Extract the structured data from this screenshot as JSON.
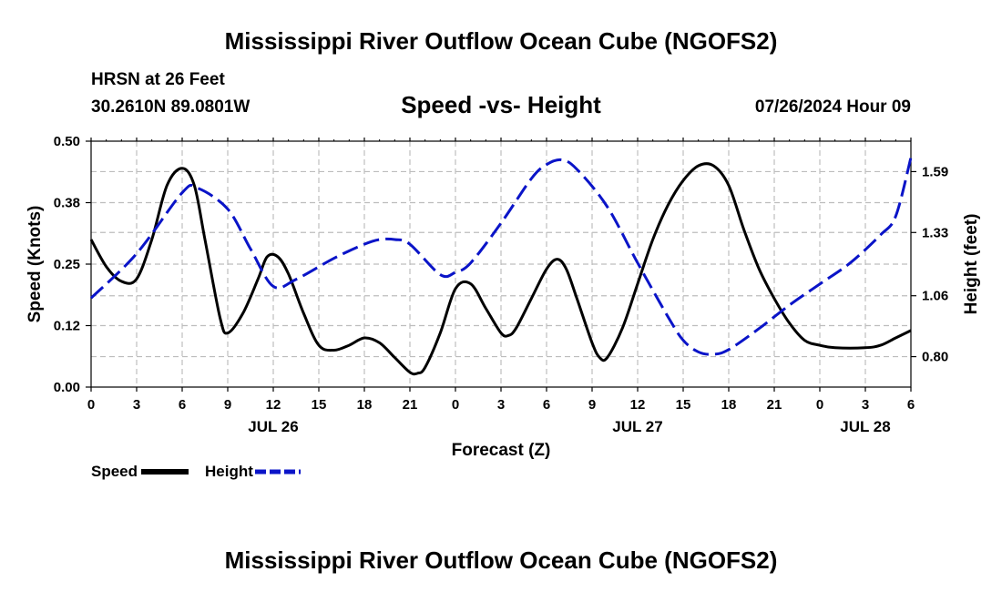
{
  "header": {
    "title": "Mississippi River Outflow Ocean Cube (NGOFS2)",
    "station": "HRSN at 26 Feet",
    "coords": "30.2610N  89.0801W",
    "subtitle": "Speed -vs- Height",
    "datetime": "07/26/2024 Hour 09"
  },
  "footer": {
    "title": "Mississippi River Outflow Ocean Cube (NGOFS2)"
  },
  "legend": {
    "speed_label": "Speed",
    "height_label": "Height",
    "speed_color": "#000000",
    "height_color": "#0a14c8"
  },
  "chart_data": {
    "type": "line",
    "title": "Speed -vs- Height",
    "xlabel": "Forecast (Z)",
    "ylabel": "Speed (Knots)",
    "y2label": "Height (feet)",
    "xlim": [
      0,
      54
    ],
    "ylim": [
      0,
      0.5
    ],
    "y2lim": [
      0.67,
      1.72
    ],
    "x_ticks": [
      0,
      3,
      6,
      9,
      12,
      15,
      18,
      21,
      24,
      27,
      30,
      33,
      36,
      39,
      42,
      45,
      48,
      51,
      54
    ],
    "x_tick_labels": [
      "0",
      "3",
      "6",
      "9",
      "12",
      "15",
      "18",
      "21",
      "0",
      "3",
      "6",
      "9",
      "12",
      "15",
      "18",
      "21",
      "0",
      "3",
      "6"
    ],
    "y_ticks": [
      0,
      0.125,
      0.25,
      0.375,
      0.5
    ],
    "y_tick_labels": [
      "0.00",
      "0.12",
      "0.25",
      "0.38",
      "0.50"
    ],
    "y2_ticks": [
      0.8,
      1.06,
      1.33,
      1.59
    ],
    "y2_tick_labels": [
      "0.80",
      "1.06",
      "1.33",
      "1.59"
    ],
    "date_labels": [
      {
        "x": 12,
        "label": "JUL 26"
      },
      {
        "x": 36,
        "label": "JUL 27"
      },
      {
        "x": 51,
        "label": "JUL 28"
      }
    ],
    "grid": true,
    "legend_position": "bottom-left",
    "series": [
      {
        "name": "Speed",
        "axis": "left",
        "color": "#000000",
        "dash": "solid",
        "points": [
          [
            0,
            0.3
          ],
          [
            1,
            0.245
          ],
          [
            2,
            0.215
          ],
          [
            3,
            0.22
          ],
          [
            4,
            0.3
          ],
          [
            5,
            0.41
          ],
          [
            6,
            0.445
          ],
          [
            6.8,
            0.41
          ],
          [
            7.5,
            0.3
          ],
          [
            8.5,
            0.14
          ],
          [
            9,
            0.11
          ],
          [
            10,
            0.15
          ],
          [
            11,
            0.22
          ],
          [
            11.6,
            0.265
          ],
          [
            12.3,
            0.265
          ],
          [
            13,
            0.23
          ],
          [
            14,
            0.15
          ],
          [
            15,
            0.085
          ],
          [
            16,
            0.075
          ],
          [
            17,
            0.085
          ],
          [
            18,
            0.1
          ],
          [
            19,
            0.09
          ],
          [
            20,
            0.06
          ],
          [
            21,
            0.03
          ],
          [
            21.5,
            0.028
          ],
          [
            22,
            0.04
          ],
          [
            23,
            0.11
          ],
          [
            24,
            0.2
          ],
          [
            25,
            0.21
          ],
          [
            26,
            0.16
          ],
          [
            27,
            0.11
          ],
          [
            27.5,
            0.105
          ],
          [
            28,
            0.12
          ],
          [
            29,
            0.18
          ],
          [
            30,
            0.24
          ],
          [
            30.7,
            0.26
          ],
          [
            31.3,
            0.24
          ],
          [
            32,
            0.18
          ],
          [
            33,
            0.09
          ],
          [
            33.5,
            0.06
          ],
          [
            34,
            0.06
          ],
          [
            35,
            0.12
          ],
          [
            36,
            0.21
          ],
          [
            37,
            0.3
          ],
          [
            38,
            0.37
          ],
          [
            39,
            0.42
          ],
          [
            40,
            0.45
          ],
          [
            41,
            0.45
          ],
          [
            42,
            0.41
          ],
          [
            43,
            0.32
          ],
          [
            44,
            0.24
          ],
          [
            45,
            0.18
          ],
          [
            46,
            0.13
          ],
          [
            47,
            0.095
          ],
          [
            48,
            0.085
          ],
          [
            49,
            0.08
          ],
          [
            51,
            0.08
          ],
          [
            52,
            0.085
          ],
          [
            53,
            0.1
          ],
          [
            54,
            0.115
          ]
        ]
      },
      {
        "name": "Height",
        "axis": "right",
        "color": "#0a14c8",
        "dash": "dashed",
        "points": [
          [
            0,
            1.05
          ],
          [
            3,
            1.24
          ],
          [
            6,
            1.5
          ],
          [
            7,
            1.52
          ],
          [
            9,
            1.43
          ],
          [
            10.5,
            1.26
          ],
          [
            12,
            1.1
          ],
          [
            13.5,
            1.13
          ],
          [
            16,
            1.22
          ],
          [
            18,
            1.28
          ],
          [
            19,
            1.3
          ],
          [
            20,
            1.3
          ],
          [
            21,
            1.28
          ],
          [
            23,
            1.15
          ],
          [
            24,
            1.16
          ],
          [
            25,
            1.2
          ],
          [
            27,
            1.37
          ],
          [
            29,
            1.56
          ],
          [
            30,
            1.62
          ],
          [
            31,
            1.64
          ],
          [
            32,
            1.6
          ],
          [
            34,
            1.44
          ],
          [
            36,
            1.2
          ],
          [
            38,
            0.97
          ],
          [
            39,
            0.87
          ],
          [
            40,
            0.82
          ],
          [
            41,
            0.81
          ],
          [
            42,
            0.83
          ],
          [
            44,
            0.92
          ],
          [
            46,
            1.02
          ],
          [
            48,
            1.11
          ],
          [
            50,
            1.2
          ],
          [
            52,
            1.32
          ],
          [
            53,
            1.4
          ],
          [
            54,
            1.65
          ]
        ]
      }
    ]
  }
}
